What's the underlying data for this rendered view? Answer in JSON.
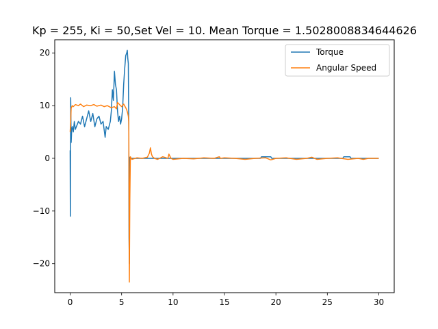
{
  "chart_data": {
    "type": "line",
    "title": "Kp = 255, Ki = 50,Set Vel = 10. Mean Torque = 1.5028008834644626",
    "xlabel": "",
    "ylabel": "",
    "xlim": [
      -1.5,
      31.5
    ],
    "ylim": [
      -25.5,
      22.5
    ],
    "xticks": [
      0,
      5,
      10,
      15,
      20,
      25,
      30
    ],
    "yticks": [
      -20,
      -10,
      0,
      10,
      20
    ],
    "grid": false,
    "legend_position": "upper-right",
    "series": [
      {
        "name": "Torque",
        "color": "#1f77b4",
        "x": [
          0,
          0.02,
          0.05,
          0.1,
          0.15,
          0.2,
          0.3,
          0.4,
          0.5,
          0.6,
          0.8,
          1.0,
          1.2,
          1.4,
          1.6,
          1.8,
          2.0,
          2.2,
          2.4,
          2.6,
          2.8,
          3.0,
          3.2,
          3.4,
          3.5,
          3.7,
          3.9,
          4.0,
          4.1,
          4.2,
          4.3,
          4.4,
          4.5,
          4.6,
          4.7,
          4.8,
          4.9,
          5.0,
          5.1,
          5.2,
          5.3,
          5.4,
          5.5,
          5.55,
          5.6,
          5.65,
          5.7,
          5.72,
          5.75,
          5.78,
          5.8,
          5.85,
          6.0,
          6.5,
          7.0,
          7.5,
          8.0,
          8.5,
          9.0,
          9.5,
          10.0,
          12.0,
          15.0,
          18.5,
          18.6,
          19.5,
          19.6,
          22.0,
          25.0,
          26.5,
          26.6,
          27.2,
          27.3,
          30.0
        ],
        "values": [
          1.5,
          -11.0,
          11.5,
          3.0,
          5.5,
          6.0,
          5.0,
          7.0,
          5.5,
          6.0,
          7.0,
          6.5,
          8.0,
          6.0,
          7.5,
          9.0,
          7.0,
          8.5,
          6.0,
          7.5,
          8.0,
          6.5,
          7.0,
          4.0,
          6.0,
          5.5,
          7.0,
          9.0,
          13.0,
          11.0,
          16.5,
          14.0,
          13.0,
          9.0,
          7.0,
          8.0,
          6.5,
          7.5,
          9.5,
          14.0,
          17.0,
          19.5,
          20.0,
          20.5,
          19.0,
          18.0,
          5.0,
          -15.0,
          -20.0,
          -5.0,
          0.2,
          0.0,
          0.0,
          0.0,
          0.0,
          0.0,
          0.0,
          0.0,
          0.0,
          0.0,
          0.0,
          0.0,
          0.0,
          0.0,
          0.3,
          0.3,
          0.0,
          0.0,
          0.0,
          0.0,
          0.3,
          0.3,
          0.0,
          0.0
        ]
      },
      {
        "name": "Angular Speed",
        "color": "#ff7f0e",
        "x": [
          0,
          0.05,
          0.1,
          0.2,
          0.3,
          0.5,
          0.8,
          1.0,
          1.3,
          1.6,
          2.0,
          2.3,
          2.6,
          3.0,
          3.3,
          3.6,
          4.0,
          4.3,
          4.5,
          4.6,
          4.8,
          5.0,
          5.2,
          5.4,
          5.5,
          5.6,
          5.65,
          5.7,
          5.75,
          5.8,
          5.85,
          6.0,
          6.5,
          7.0,
          7.5,
          7.7,
          7.8,
          7.9,
          8.0,
          8.2,
          8.5,
          9.0,
          9.5,
          9.6,
          9.8,
          10.0,
          11.0,
          12.0,
          13.0,
          14.0,
          14.5,
          14.6,
          15.0,
          16.0,
          17.0,
          18.0,
          19.0,
          19.5,
          20.0,
          21.0,
          22.0,
          23.0,
          23.5,
          24.0,
          25.0,
          26.0,
          27.0,
          28.0,
          28.5,
          29.0,
          30.0
        ],
        "values": [
          5.0,
          7.0,
          9.5,
          10.0,
          9.8,
          10.2,
          10.0,
          10.3,
          9.8,
          10.1,
          10.0,
          10.2,
          9.9,
          10.1,
          9.8,
          10.0,
          9.6,
          9.8,
          9.4,
          10.6,
          10.2,
          9.8,
          10.3,
          9.6,
          9.2,
          8.5,
          8.0,
          7.0,
          -23.5,
          -8.0,
          0.3,
          -0.2,
          0.1,
          0.0,
          0.2,
          1.0,
          2.0,
          0.8,
          0.3,
          0.0,
          -0.2,
          0.3,
          0.0,
          0.8,
          0.0,
          -0.2,
          0.0,
          -0.1,
          0.1,
          0.0,
          0.3,
          0.0,
          0.1,
          0.0,
          -0.2,
          0.0,
          0.1,
          -0.3,
          0.0,
          0.1,
          -0.2,
          0.0,
          0.2,
          -0.2,
          0.0,
          0.1,
          -0.2,
          0.0,
          -0.2,
          0.0,
          0.0
        ]
      }
    ]
  }
}
